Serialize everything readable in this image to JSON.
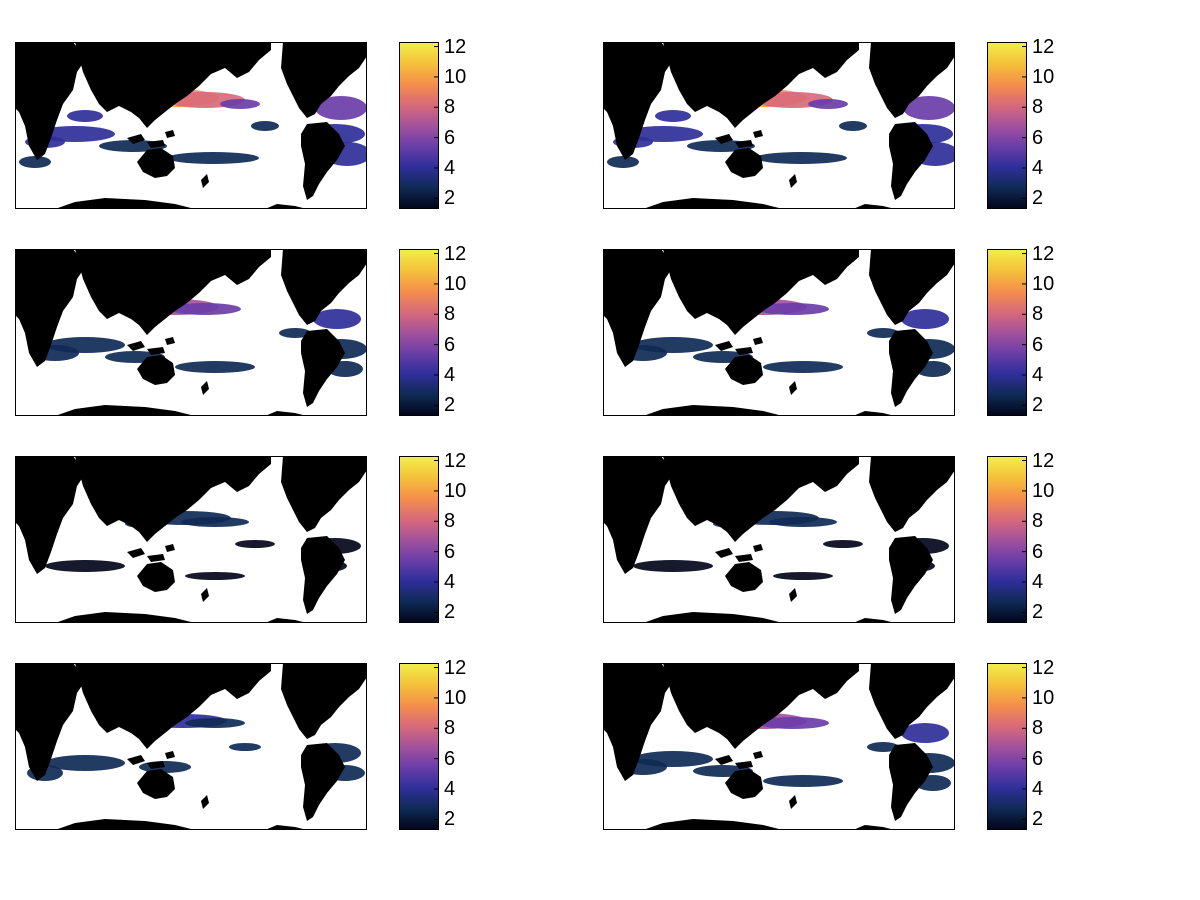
{
  "colorbar": {
    "ticks": [
      "12",
      "10",
      "8",
      "6",
      "4",
      "2"
    ],
    "tick_values": [
      12,
      10,
      8,
      6,
      4,
      2
    ],
    "range": [
      1.3,
      12.3
    ],
    "colormap": [
      "#03051a",
      "#0f2a55",
      "#2f2f9a",
      "#6a3ea8",
      "#a4529c",
      "#d86a7a",
      "#f58f4a",
      "#f4c23a",
      "#f2ee4c"
    ]
  },
  "colors": {
    "land": "#000000",
    "ocean_masked": "#ffffff",
    "frame": "#000000"
  },
  "panels": [
    {
      "id": "panel-1",
      "intensity": "high"
    },
    {
      "id": "panel-2",
      "intensity": "high"
    },
    {
      "id": "panel-3",
      "intensity": "medium"
    },
    {
      "id": "panel-4",
      "intensity": "medium"
    },
    {
      "id": "panel-5",
      "intensity": "low"
    },
    {
      "id": "panel-6",
      "intensity": "low"
    },
    {
      "id": "panel-7",
      "intensity": "medium-low"
    },
    {
      "id": "panel-8",
      "intensity": "medium"
    }
  ]
}
